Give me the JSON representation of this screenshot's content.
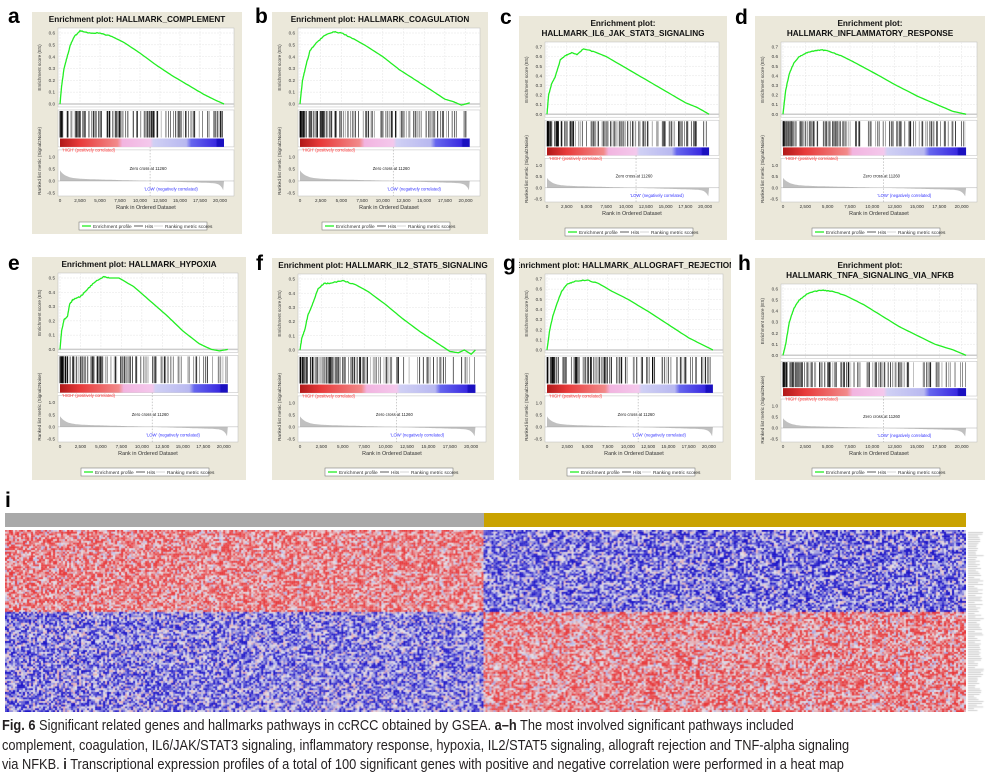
{
  "figure": {
    "heatmap_label": "i",
    "caption": {
      "fig_label": "Fig. 6",
      "line1_text": " Significant related genes and hallmarks pathways in ccRCC obtained by GSEA. ",
      "line1_bold": "a–h",
      "line1_rest": " The most involved significant pathways included",
      "line2_text": "complement, coagulation, IL6/JAK/STAT3 signaling, inflammatory response, hypoxia, IL2/STAT5 signaling, allograft rejection and TNF-alpha signaling",
      "line3_text": "via NFKB. ",
      "line3_bold": "i",
      "line3_rest": " Transcriptional expression profiles of a total of 100 significant genes with positive and negative correlation were performed in a heat map"
    }
  },
  "gsea_common": {
    "es_ylabel": "Enrichment score (ES)",
    "metric_ylabel": "Ranked list metric (Signal2Noise)",
    "xlabel": "Rank in Ordered Dataset",
    "x_ticks": [
      0,
      2500,
      5000,
      7500,
      10000,
      12500,
      15000,
      17500,
      20000
    ],
    "x_tick_labels": [
      "0",
      "2,500",
      "5,000",
      "7,500",
      "10,000",
      "12,500",
      "15,000",
      "17,500",
      "20,000"
    ],
    "metric_ticks": [
      "1.0",
      "0.5",
      "0.0",
      "-0.5"
    ],
    "high_label": "'HIGH' (positively correlated)",
    "low_label": "'LOW' (negatively correlated)",
    "zero_cross_label": "Zero cross at 11260",
    "zero_cross_rank": 11260,
    "legend": [
      "Enrichment profile",
      "Hits",
      "Ranking metric scores"
    ],
    "colors": {
      "profile": "#22ee22",
      "hits": "#000000",
      "metric": "#c0c0c0",
      "high": "#ff3333",
      "low": "#3333ff",
      "frame_bg": "#ebe8da"
    }
  },
  "chart_data": [
    {
      "type": "line",
      "label": "a",
      "title_lines": [
        "Enrichment plot: HALLMARK_COMPLEMENT"
      ],
      "ylim": [
        0,
        0.6
      ],
      "y_tick_labels": [
        "0.0",
        "0.1",
        "0.2",
        "0.3",
        "0.4",
        "0.5",
        "0.6"
      ],
      "es_points": [
        [
          0,
          0
        ],
        [
          200,
          0.15
        ],
        [
          500,
          0.3
        ],
        [
          900,
          0.4
        ],
        [
          1300,
          0.5
        ],
        [
          1800,
          0.57
        ],
        [
          2500,
          0.62
        ],
        [
          3500,
          0.6
        ],
        [
          5000,
          0.6
        ],
        [
          6500,
          0.57
        ],
        [
          8000,
          0.52
        ],
        [
          10000,
          0.43
        ],
        [
          12000,
          0.33
        ],
        [
          14000,
          0.24
        ],
        [
          16000,
          0.16
        ],
        [
          18000,
          0.08
        ],
        [
          19500,
          0.03
        ],
        [
          20500,
          0
        ]
      ]
    },
    {
      "type": "line",
      "label": "b",
      "title_lines": [
        "Enrichment plot: HALLMARK_COAGULATION"
      ],
      "ylim": [
        0,
        0.6
      ],
      "y_tick_labels": [
        "0.0",
        "0.1",
        "0.2",
        "0.3",
        "0.4",
        "0.5",
        "0.6"
      ],
      "es_points": [
        [
          0,
          0
        ],
        [
          300,
          0.2
        ],
        [
          700,
          0.32
        ],
        [
          1200,
          0.45
        ],
        [
          2000,
          0.52
        ],
        [
          3000,
          0.58
        ],
        [
          4000,
          0.61
        ],
        [
          5000,
          0.6
        ],
        [
          6500,
          0.55
        ],
        [
          8000,
          0.49
        ],
        [
          10000,
          0.4
        ],
        [
          12000,
          0.29
        ],
        [
          14000,
          0.2
        ],
        [
          16000,
          0.11
        ],
        [
          17500,
          0.04
        ],
        [
          18500,
          0.02
        ],
        [
          19500,
          -0.01
        ],
        [
          20500,
          0.01
        ]
      ]
    },
    {
      "type": "line",
      "label": "c",
      "title_lines": [
        "Enrichment plot:",
        "HALLMARK_IL6_JAK_STAT3_SIGNALING"
      ],
      "ylim": [
        0,
        0.7
      ],
      "y_tick_labels": [
        "0.0",
        "0.1",
        "0.2",
        "0.3",
        "0.4",
        "0.5",
        "0.6",
        "0.7"
      ],
      "es_points": [
        [
          0,
          0
        ],
        [
          200,
          0.2
        ],
        [
          600,
          0.32
        ],
        [
          1000,
          0.38
        ],
        [
          1700,
          0.57
        ],
        [
          2500,
          0.62
        ],
        [
          3200,
          0.64
        ],
        [
          3800,
          0.62
        ],
        [
          4600,
          0.68
        ],
        [
          6000,
          0.65
        ],
        [
          7500,
          0.6
        ],
        [
          10000,
          0.48
        ],
        [
          12500,
          0.36
        ],
        [
          15000,
          0.24
        ],
        [
          17500,
          0.12
        ],
        [
          19000,
          0.07
        ],
        [
          20500,
          0
        ]
      ]
    },
    {
      "type": "line",
      "label": "d",
      "title_lines": [
        "Enrichment plot:",
        "HALLMARK_INFLAMMATORY_RESPONSE"
      ],
      "ylim": [
        0,
        0.7
      ],
      "y_tick_labels": [
        "0.0",
        "0.1",
        "0.2",
        "0.3",
        "0.4",
        "0.5",
        "0.6",
        "0.7"
      ],
      "es_points": [
        [
          0,
          0
        ],
        [
          300,
          0.25
        ],
        [
          700,
          0.42
        ],
        [
          1200,
          0.53
        ],
        [
          1800,
          0.6
        ],
        [
          2600,
          0.64
        ],
        [
          3500,
          0.66
        ],
        [
          4300,
          0.67
        ],
        [
          5000,
          0.66
        ],
        [
          6500,
          0.61
        ],
        [
          8000,
          0.54
        ],
        [
          10000,
          0.44
        ],
        [
          12500,
          0.31
        ],
        [
          15000,
          0.19
        ],
        [
          17500,
          0.09
        ],
        [
          19000,
          0.03
        ],
        [
          20500,
          0
        ]
      ]
    },
    {
      "type": "line",
      "label": "e",
      "title_lines": [
        "Enrichment plot: HALLMARK_HYPOXIA"
      ],
      "ylim": [
        0,
        0.5
      ],
      "y_tick_labels": [
        "0.0",
        "0.1",
        "0.2",
        "0.3",
        "0.4",
        "0.5"
      ],
      "es_points": [
        [
          0,
          0
        ],
        [
          200,
          0.13
        ],
        [
          500,
          0.21
        ],
        [
          900,
          0.23
        ],
        [
          1200,
          0.32
        ],
        [
          1600,
          0.35
        ],
        [
          2500,
          0.37
        ],
        [
          3000,
          0.4
        ],
        [
          4000,
          0.46
        ],
        [
          5300,
          0.51
        ],
        [
          6000,
          0.5
        ],
        [
          7200,
          0.5
        ],
        [
          9000,
          0.44
        ],
        [
          11000,
          0.34
        ],
        [
          13000,
          0.24
        ],
        [
          15000,
          0.13
        ],
        [
          17000,
          0.04
        ],
        [
          18500,
          0
        ],
        [
          19500,
          -0.01
        ],
        [
          20500,
          0
        ]
      ]
    },
    {
      "type": "line",
      "label": "f",
      "title_lines": [
        "Enrichment plot: HALLMARK_IL2_STAT5_SIGNALING"
      ],
      "ylim": [
        0,
        0.5
      ],
      "y_tick_labels": [
        "0.0",
        "0.1",
        "0.2",
        "0.3",
        "0.4",
        "0.5"
      ],
      "es_points": [
        [
          0,
          0
        ],
        [
          200,
          0.08
        ],
        [
          600,
          0.15
        ],
        [
          900,
          0.24
        ],
        [
          1500,
          0.33
        ],
        [
          2100,
          0.43
        ],
        [
          2800,
          0.47
        ],
        [
          3500,
          0.47
        ],
        [
          5000,
          0.49
        ],
        [
          6500,
          0.46
        ],
        [
          8000,
          0.41
        ],
        [
          10000,
          0.32
        ],
        [
          12000,
          0.22
        ],
        [
          14000,
          0.13
        ],
        [
          16000,
          0.05
        ],
        [
          17500,
          -0.01
        ],
        [
          18500,
          -0.02
        ],
        [
          19200,
          0
        ],
        [
          20000,
          -0.03
        ],
        [
          20500,
          0
        ]
      ]
    },
    {
      "type": "line",
      "label": "g",
      "title_lines": [
        "Enrichment plot: HALLMARK_ALLOGRAFT_REJECTION"
      ],
      "ylim": [
        0,
        0.7
      ],
      "y_tick_labels": [
        "0.0",
        "0.1",
        "0.2",
        "0.3",
        "0.4",
        "0.5",
        "0.6",
        "0.7"
      ],
      "es_points": [
        [
          0,
          0
        ],
        [
          300,
          0.18
        ],
        [
          700,
          0.33
        ],
        [
          1200,
          0.45
        ],
        [
          1800,
          0.58
        ],
        [
          2500,
          0.65
        ],
        [
          3500,
          0.68
        ],
        [
          5000,
          0.69
        ],
        [
          6500,
          0.65
        ],
        [
          8000,
          0.58
        ],
        [
          10000,
          0.5
        ],
        [
          12500,
          0.38
        ],
        [
          15000,
          0.25
        ],
        [
          17500,
          0.12
        ],
        [
          19500,
          0.04
        ],
        [
          20500,
          0
        ]
      ]
    },
    {
      "type": "line",
      "label": "h",
      "title_lines": [
        "Enrichment plot:",
        "HALLMARK_TNFA_SIGNALING_VIA_NFKB"
      ],
      "ylim": [
        0,
        0.6
      ],
      "y_tick_labels": [
        "0.0",
        "0.1",
        "0.2",
        "0.3",
        "0.4",
        "0.5",
        "0.6"
      ],
      "es_points": [
        [
          0,
          0
        ],
        [
          300,
          0.1
        ],
        [
          700,
          0.3
        ],
        [
          1200,
          0.42
        ],
        [
          1800,
          0.5
        ],
        [
          2600,
          0.55
        ],
        [
          3500,
          0.58
        ],
        [
          4500,
          0.59
        ],
        [
          5500,
          0.58
        ],
        [
          7000,
          0.54
        ],
        [
          9000,
          0.46
        ],
        [
          11000,
          0.36
        ],
        [
          13000,
          0.26
        ],
        [
          15000,
          0.18
        ],
        [
          17000,
          0.1
        ],
        [
          19000,
          0.05
        ],
        [
          20500,
          0
        ]
      ]
    }
  ],
  "heatmap": {
    "type": "heatmap",
    "genes": 100,
    "group_colors": [
      "#a9a9a9",
      "#c9a200"
    ],
    "cell_colors": {
      "high": "#e8393b",
      "mid": "#e4e4ec",
      "low": "#1c14c8"
    }
  }
}
